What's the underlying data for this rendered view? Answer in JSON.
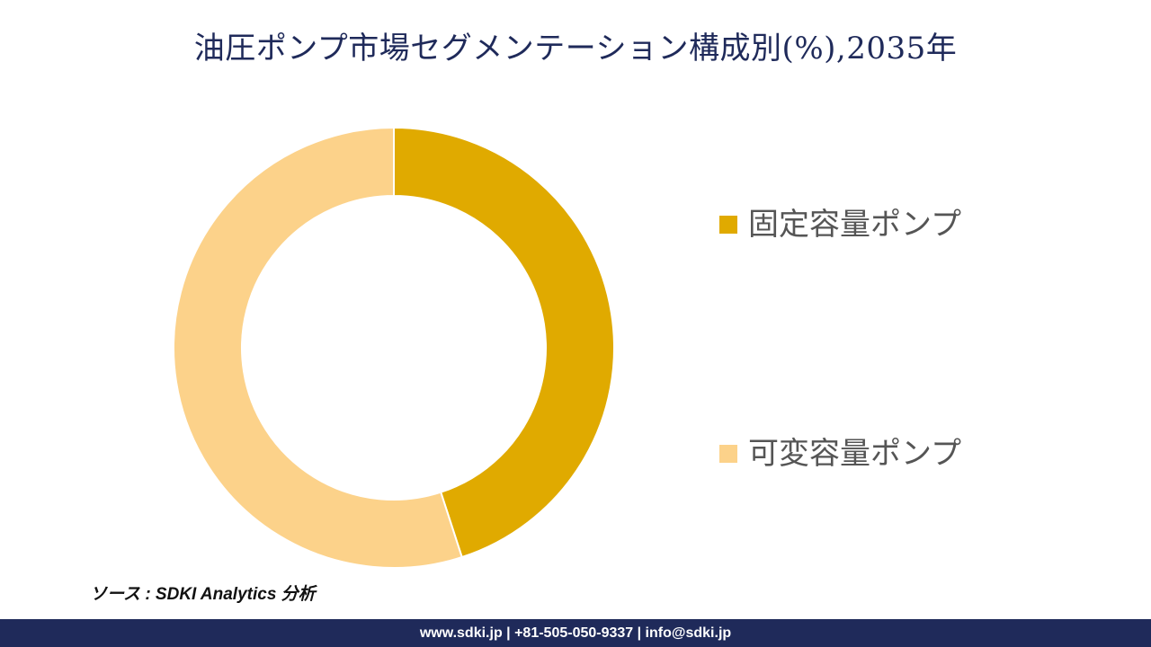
{
  "chart_data": {
    "type": "pie",
    "title": "油圧ポンプ市場セグメンテーション構成別(%),2035年",
    "donut": true,
    "categories": [
      "固定容量ポンプ",
      "可変容量ポンプ"
    ],
    "values": [
      45,
      55
    ],
    "colors": [
      "#e0aa00",
      "#fcd28a"
    ],
    "legend_position": "right"
  },
  "source": {
    "text": "ソース : SDKI Analytics 分析"
  },
  "footer": {
    "text": "www.sdki.jp | +81-505-050-9337 | info@sdki.jp"
  }
}
